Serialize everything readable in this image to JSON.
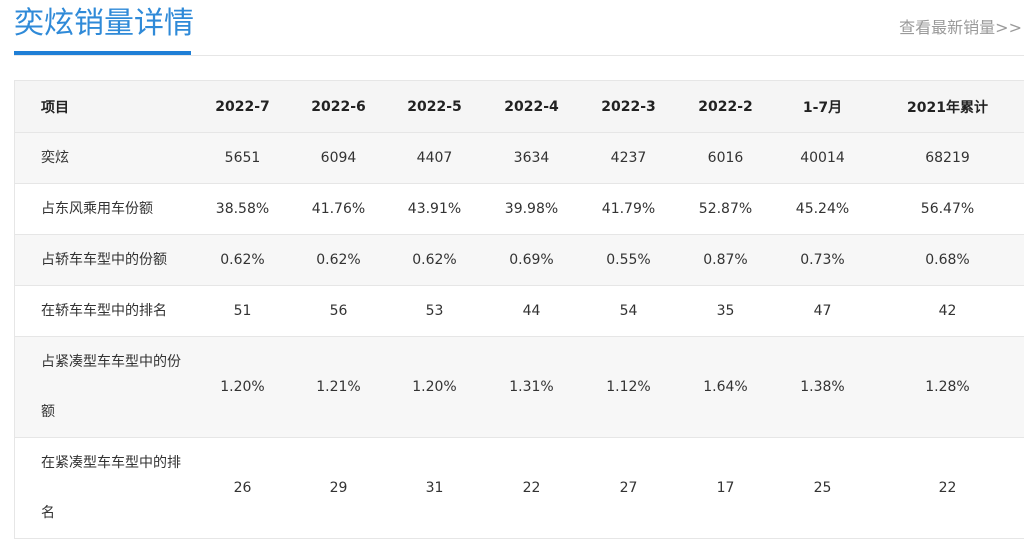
{
  "header": {
    "title": "奕炫销量详情",
    "more_link": "查看最新销量>>"
  },
  "table": {
    "columns": [
      "项目",
      "2022-7",
      "2022-6",
      "2022-5",
      "2022-4",
      "2022-3",
      "2022-2",
      "1-7月",
      "2021年累计"
    ],
    "rows": [
      {
        "label": "奕炫",
        "values": [
          "5651",
          "6094",
          "4407",
          "3634",
          "4237",
          "6016",
          "40014",
          "68219"
        ]
      },
      {
        "label": "占东风乘用车份额",
        "values": [
          "38.58%",
          "41.76%",
          "43.91%",
          "39.98%",
          "41.79%",
          "52.87%",
          "45.24%",
          "56.47%"
        ]
      },
      {
        "label": "占轿车车型中的份额",
        "values": [
          "0.62%",
          "0.62%",
          "0.62%",
          "0.69%",
          "0.55%",
          "0.87%",
          "0.73%",
          "0.68%"
        ]
      },
      {
        "label": "在轿车车型中的排名",
        "values": [
          "51",
          "56",
          "53",
          "44",
          "54",
          "35",
          "47",
          "42"
        ]
      },
      {
        "label": "占紧凑型车车型中的份额",
        "values": [
          "1.20%",
          "1.21%",
          "1.20%",
          "1.31%",
          "1.12%",
          "1.64%",
          "1.38%",
          "1.28%"
        ]
      },
      {
        "label": "在紧凑型车车型中的排名",
        "values": [
          "26",
          "29",
          "31",
          "22",
          "27",
          "17",
          "25",
          "22"
        ]
      }
    ]
  }
}
